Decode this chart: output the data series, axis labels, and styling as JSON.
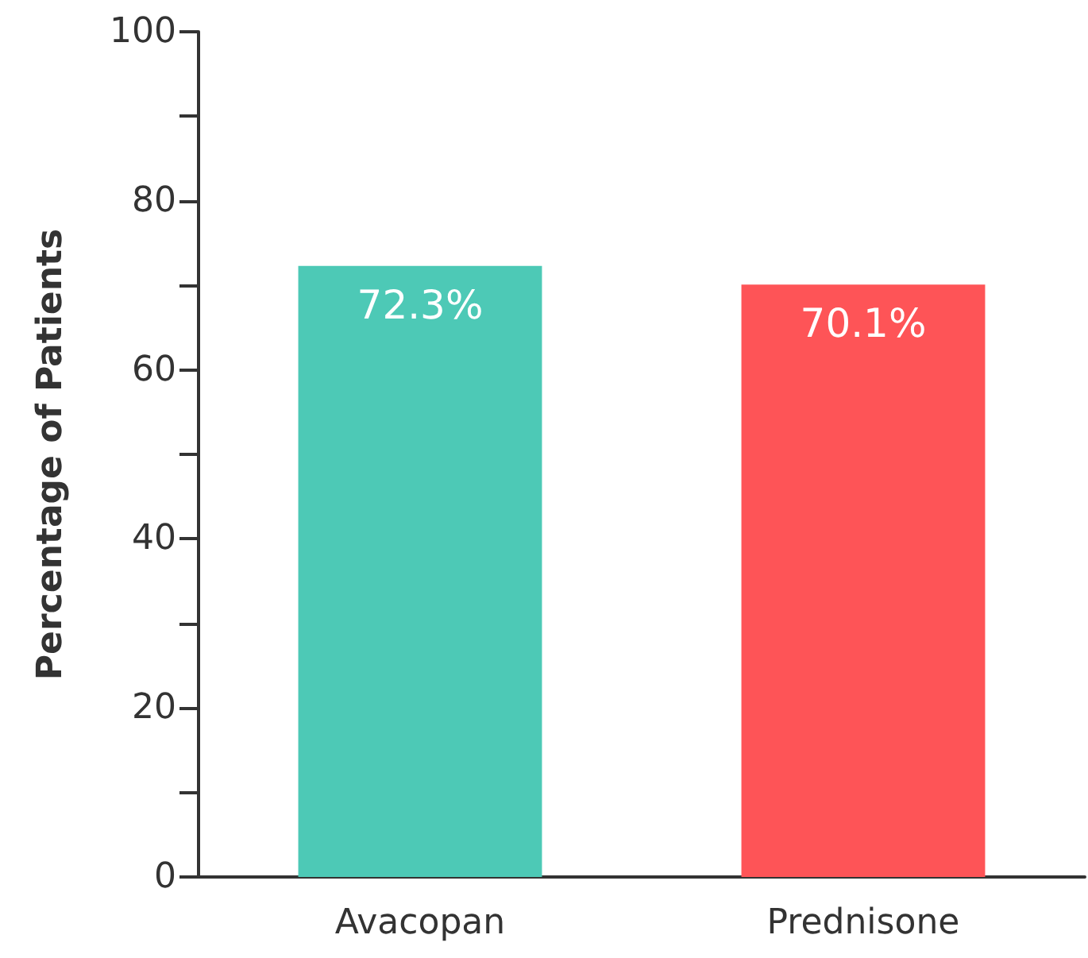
{
  "chart_data": {
    "type": "bar",
    "ylabel": "Percentage of Patients",
    "categories": [
      "Avacopan",
      "Prednisone"
    ],
    "values": [
      72.3,
      70.1
    ],
    "colors": [
      "#4dc9b6",
      "#fe5457"
    ],
    "value_labels": [
      "72.3%",
      "70.1%"
    ],
    "ylim": [
      0,
      100
    ],
    "yticks": [
      0,
      {
        "value": 10,
        "label": null
      },
      20,
      {
        "value": 30,
        "label": null
      },
      40,
      {
        "value": 50,
        "label": null
      },
      60,
      {
        "value": 70,
        "label": null
      },
      80,
      {
        "value": 90,
        "label": null
      },
      100
    ],
    "tick_labels": "xy"
  }
}
